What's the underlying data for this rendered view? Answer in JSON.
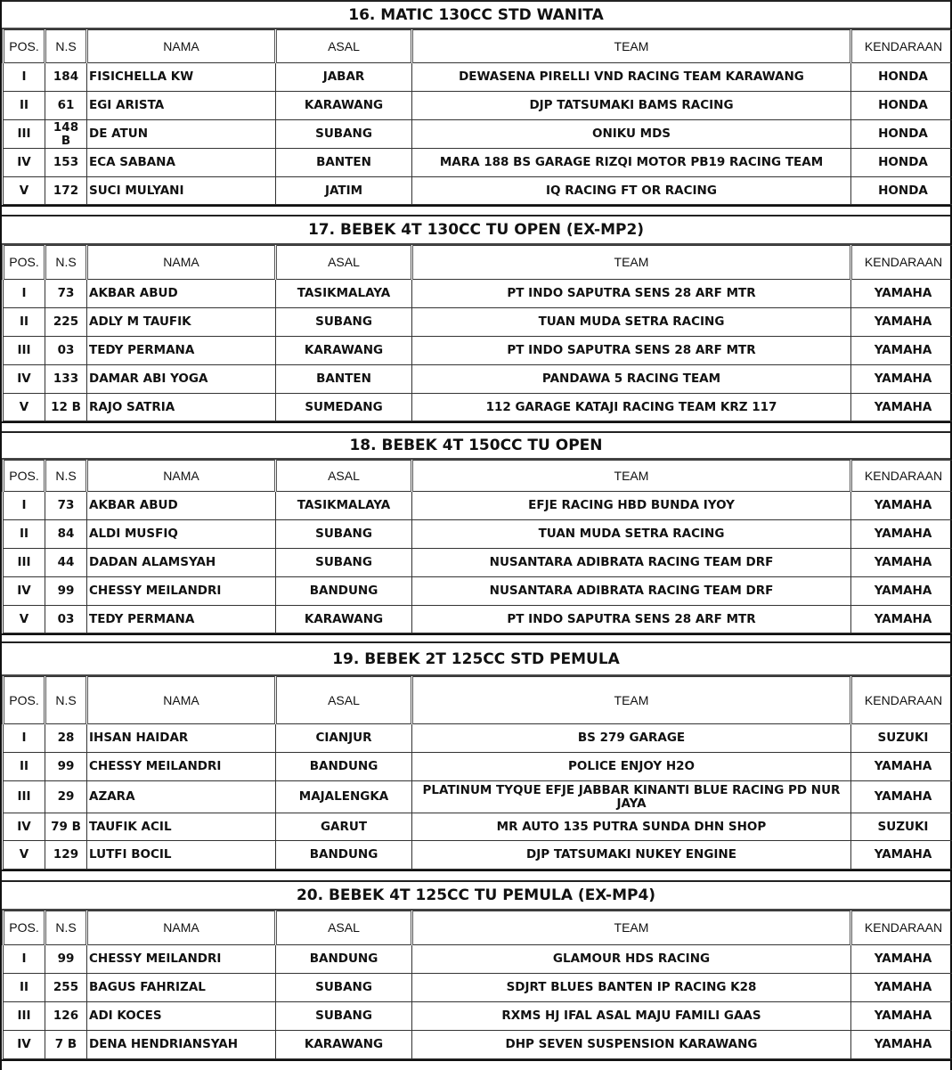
{
  "columns": [
    "POS.",
    "N.S",
    "NAMA",
    "ASAL",
    "TEAM",
    "KENDARAAN"
  ],
  "sections": [
    {
      "title": "16. MATIC 130CC STD WANITA",
      "rows": [
        [
          "I",
          "184",
          "FISICHELLA KW",
          "JABAR",
          "DEWASENA PIRELLI VND RACING TEAM KARAWANG",
          "HONDA"
        ],
        [
          "II",
          "61",
          "EGI ARISTA",
          "KARAWANG",
          "DJP TATSUMAKI BAMS RACING",
          "HONDA"
        ],
        [
          "III",
          "148 B",
          "DE ATUN",
          "SUBANG",
          "ONIKU MDS",
          "HONDA"
        ],
        [
          "IV",
          "153",
          "ECA SABANA",
          "BANTEN",
          "MARA 188 BS GARAGE RIZQI MOTOR PB19 RACING TEAM",
          "HONDA"
        ],
        [
          "V",
          "172",
          "SUCI MULYANI",
          "JATIM",
          "IQ RACING FT OR RACING",
          "HONDA"
        ]
      ]
    },
    {
      "title": "17. BEBEK 4T 130CC TU OPEN (EX-MP2)",
      "rows": [
        [
          "I",
          "73",
          "AKBAR ABUD",
          "TASIKMALAYA",
          "PT INDO SAPUTRA SENS 28 ARF MTR",
          "YAMAHA"
        ],
        [
          "II",
          "225",
          "ADLY M TAUFIK",
          "SUBANG",
          "TUAN MUDA SETRA RACING",
          "YAMAHA"
        ],
        [
          "III",
          "03",
          "TEDY PERMANA",
          "KARAWANG",
          "PT INDO SAPUTRA SENS 28 ARF MTR",
          "YAMAHA"
        ],
        [
          "IV",
          "133",
          "DAMAR ABI YOGA",
          "BANTEN",
          "PANDAWA 5 RACING TEAM",
          "YAMAHA"
        ],
        [
          "V",
          "12 B",
          "RAJO SATRIA",
          "SUMEDANG",
          "112 GARAGE KATAJI RACING TEAM KRZ 117",
          "YAMAHA"
        ]
      ]
    },
    {
      "title": "18. BEBEK 4T 150CC TU OPEN",
      "rows": [
        [
          "I",
          "73",
          "AKBAR ABUD",
          "TASIKMALAYA",
          "EFJE RACING HBD BUNDA IYOY",
          "YAMAHA"
        ],
        [
          "II",
          "84",
          "ALDI MUSFIQ",
          "SUBANG",
          "TUAN MUDA SETRA RACING",
          "YAMAHA"
        ],
        [
          "III",
          "44",
          "DADAN ALAMSYAH",
          "SUBANG",
          "NUSANTARA ADIBRATA RACING TEAM DRF",
          "YAMAHA"
        ],
        [
          "IV",
          "99",
          "CHESSY MEILANDRI",
          "BANDUNG",
          "NUSANTARA ADIBRATA RACING TEAM DRF",
          "YAMAHA"
        ],
        [
          "V",
          "03",
          "TEDY PERMANA",
          "KARAWANG",
          "PT INDO SAPUTRA SENS 28 ARF MTR",
          "YAMAHA"
        ]
      ]
    },
    {
      "title": "19. BEBEK 2T 125CC STD PEMULA",
      "rows": [
        [
          "I",
          "28",
          "IHSAN HAIDAR",
          "CIANJUR",
          "BS 279 GARAGE",
          "SUZUKI"
        ],
        [
          "II",
          "99",
          "CHESSY MEILANDRI",
          "BANDUNG",
          "POLICE ENJOY H2O",
          "YAMAHA"
        ],
        [
          "III",
          "29",
          "AZARA",
          "MAJALENGKA",
          "PLATINUM TYQUE EFJE JABBAR KINANTI BLUE RACING PD NUR JAYA",
          "YAMAHA"
        ],
        [
          "IV",
          "79 B",
          "TAUFIK ACIL",
          "GARUT",
          "MR AUTO 135 PUTRA SUNDA DHN SHOP",
          "SUZUKI"
        ],
        [
          "V",
          "129",
          "LUTFI BOCIL",
          "BANDUNG",
          "DJP TATSUMAKI NUKEY ENGINE",
          "YAMAHA"
        ]
      ]
    },
    {
      "title": "20. BEBEK 4T 125CC TU PEMULA (EX-MP4)",
      "rows": [
        [
          "I",
          "99",
          "CHESSY MEILANDRI",
          "BANDUNG",
          "GLAMOUR HDS RACING",
          "YAMAHA"
        ],
        [
          "II",
          "255",
          "BAGUS FAHRIZAL",
          "SUBANG",
          "SDJRT BLUES BANTEN IP RACING K28",
          "YAMAHA"
        ],
        [
          "III",
          "126",
          "ADI KOCES",
          "SUBANG",
          "RXMS HJ IFAL ASAL MAJU FAMILI GAAS",
          "YAMAHA"
        ],
        [
          "IV",
          "7 B",
          "DENA HENDRIANSYAH",
          "KARAWANG",
          "DHP SEVEN SUSPENSION KARAWANG",
          "YAMAHA"
        ]
      ]
    }
  ]
}
